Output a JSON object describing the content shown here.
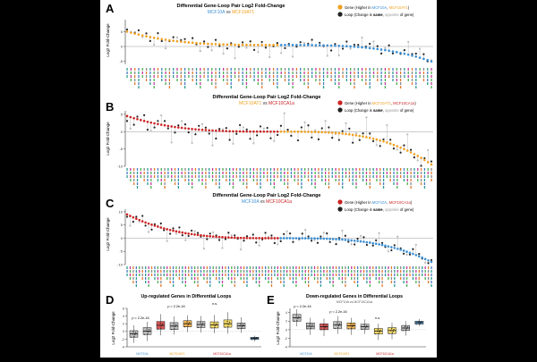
{
  "figure": {
    "panels": [
      {
        "letter": "A",
        "title": "Differential Gene-Loop Pair Log2 Fold-Change",
        "subtitle_a": "MCF10A",
        "subtitle_vs": " vs ",
        "subtitle_b": "MCF10AT1",
        "ylabel": "Log2 Fold-Change",
        "legend_gene_prefix": "Gene (Higher in ",
        "legend_gene_a": "MCF10A",
        "legend_gene_sep": ", ",
        "legend_gene_b": "MCF10AT1",
        "legend_gene_suffix": ")",
        "legend_loop_prefix": "Loop (Change is ",
        "legend_loop_same": "same",
        "legend_loop_mid": ", ",
        "legend_loop_opp": "opposite",
        "legend_loop_suffix": " of gene)"
      },
      {
        "letter": "B",
        "title": "Differential Gene-Loop Pair Log2 Fold-Change",
        "subtitle_a": "MCF10AT1",
        "subtitle_vs": " vs ",
        "subtitle_b": "MCF10CA1a",
        "ylabel": "Log2 Fold-Change",
        "legend_gene_prefix": "Gene (Higher in ",
        "legend_gene_a": "MCF10AT1",
        "legend_gene_sep": ", ",
        "legend_gene_b": "MCF10CA1a",
        "legend_gene_suffix": ")",
        "legend_loop_prefix": "Loop (Change is ",
        "legend_loop_same": "same",
        "legend_loop_mid": ", ",
        "legend_loop_opp": "opposite",
        "legend_loop_suffix": " of gene)"
      },
      {
        "letter": "C",
        "title": "Differential Gene-Loop Pair Log2 Fold-Change",
        "subtitle_a": "MCF10A",
        "subtitle_vs": " vs ",
        "subtitle_b": "MCF10CA1a",
        "ylabel": "Log2 Fold-Change",
        "legend_gene_prefix": "Gene (Higher in ",
        "legend_gene_a": "MCF10A",
        "legend_gene_sep": ", ",
        "legend_gene_b": "MCF10CA1a",
        "legend_gene_suffix": ")",
        "legend_loop_prefix": "Loop (Change is ",
        "legend_loop_same": "same",
        "legend_loop_mid": ", ",
        "legend_loop_opp": "opposite",
        "legend_loop_suffix": " of gene)"
      }
    ],
    "box_panels": [
      {
        "letter": "D",
        "title": "Up-regulated Genes in Differential Loops",
        "ylabel": "Log2 Fold-Change",
        "subtitle": "",
        "pvals": [
          "p < 2.2e-16",
          "p < 2.2e-16",
          "n.s."
        ],
        "groups": [
          "MCF10A",
          "MCF10AT1",
          "MCF10CA1a"
        ]
      },
      {
        "letter": "E",
        "title": "Down-regulated Genes in Differential Loops",
        "ylabel": "Log2 Fold-Change",
        "subtitle": "MCF10A vs MCF10CA1a",
        "pvals": [
          "p < 2.2e-16",
          "p < 2.2e-16",
          "n.s."
        ],
        "groups": [
          "MCF10A",
          "MCF10AT1",
          "MCF10CA1a"
        ]
      }
    ]
  },
  "colors": {
    "mcf10a": "#3b8fd4",
    "mcf10at1": "#f0a020",
    "mcf10ca1a": "#cc2222",
    "loop_same": "#222222",
    "loop_opp": "#bbbbbb",
    "box_grey": "#aaaaaa",
    "box_yellow": "#f5d33a",
    "box_blue": "#3b8fd4",
    "label_teal": "#2a9d8f",
    "label_magenta": "#c0399b",
    "label_orange": "#e07b2a",
    "label_blue": "#4a7ac9",
    "label_green": "#4caf50"
  },
  "chart_data": [
    {
      "type": "scatter",
      "panel": "A",
      "series_high": "mcf10at1",
      "series_low": "mcf10a",
      "n_genes": 80,
      "start": 5.0,
      "end": -5.0,
      "mid": 0.5,
      "ylim": [
        -6,
        9
      ],
      "yticks": [
        -5,
        0,
        5
      ],
      "loop_offsets": [
        1.2,
        -1.8,
        0.6,
        2.4,
        -0.9,
        1.6,
        -2.2,
        0.8,
        3.0,
        -1.1,
        1.4,
        -0.5,
        2.0,
        -2.8,
        0.9,
        1.7,
        -1.5,
        2.6,
        -0.7,
        1.1
      ]
    },
    {
      "type": "scatter",
      "panel": "B",
      "series_high": "mcf10ca1a",
      "series_low": "mcf10at1",
      "n_genes": 90,
      "start": 4.5,
      "end": -9.5,
      "mid": 0.0,
      "ylim": [
        -10,
        6
      ],
      "yticks": [
        -10,
        -5,
        0,
        5
      ],
      "loop_offsets": [
        -2.4,
        1.8,
        -3.2,
        1.2,
        -1.6,
        2.8,
        -3.8,
        0.9,
        -2.0,
        1.5,
        -4.2,
        2.1,
        -1.2,
        3.1,
        -2.7,
        1.0,
        -3.5,
        1.9,
        -1.8,
        2.5
      ]
    },
    {
      "type": "scatter",
      "panel": "C",
      "series_high": "mcf10ca1a",
      "series_low": "mcf10a",
      "n_genes": 100,
      "start": 9.0,
      "end": -9.0,
      "mid": 0.0,
      "ylim": [
        -10,
        11
      ],
      "yticks": [
        -10,
        -5,
        0,
        5,
        10
      ],
      "loop_offsets": [
        -1.5,
        2.2,
        -2.8,
        1.3,
        -0.8,
        3.4,
        -2.0,
        1.7,
        -3.1,
        0.9,
        -1.9,
        2.6,
        -1.1,
        3.0,
        -2.4,
        1.5,
        -0.6,
        2.9,
        -1.7,
        1.2
      ]
    },
    {
      "type": "box",
      "panel": "D",
      "ylim": [
        -4,
        6
      ],
      "yticks": [
        -4,
        -2,
        0,
        2,
        4,
        6
      ],
      "boxes": [
        {
          "color": "box_grey",
          "q1": -1.5,
          "med": -0.6,
          "q3": 0.2,
          "lo": -3.0,
          "hi": 1.6
        },
        {
          "color": "box_grey",
          "q1": -0.8,
          "med": 0.1,
          "q3": 1.0,
          "lo": -2.5,
          "hi": 2.5
        },
        {
          "color": "mcf10ca1a",
          "q1": 0.6,
          "med": 1.6,
          "q3": 2.6,
          "lo": -1.0,
          "hi": 4.5
        },
        {
          "color": "box_grey",
          "q1": 0.5,
          "med": 1.4,
          "q3": 2.3,
          "lo": -0.8,
          "hi": 3.9
        },
        {
          "color": "mcf10at1",
          "q1": 1.2,
          "med": 2.0,
          "q3": 2.8,
          "lo": -0.2,
          "hi": 4.2
        },
        {
          "color": "box_grey",
          "q1": 1.0,
          "med": 1.8,
          "q3": 2.6,
          "lo": -0.3,
          "hi": 4.0
        },
        {
          "color": "box_yellow",
          "q1": 0.9,
          "med": 1.7,
          "q3": 2.5,
          "lo": -0.5,
          "hi": 4.3
        },
        {
          "color": "box_yellow",
          "q1": 1.1,
          "med": 2.0,
          "q3": 3.0,
          "lo": -0.6,
          "hi": 5.0
        },
        {
          "color": "box_grey",
          "q1": 0.7,
          "med": 1.5,
          "q3": 2.2,
          "lo": -0.4,
          "hi": 3.7
        },
        {
          "color": "box_blue",
          "q1": -2.1,
          "med": -1.8,
          "q3": -1.5,
          "lo": -2.6,
          "hi": -1.1
        }
      ]
    },
    {
      "type": "box",
      "panel": "E",
      "ylim": [
        -4,
        5
      ],
      "yticks": [
        -4,
        -2,
        0,
        2,
        4
      ],
      "boxes": [
        {
          "color": "box_grey",
          "q1": 2.0,
          "med": 2.8,
          "q3": 3.6,
          "lo": 0.8,
          "hi": 4.8
        },
        {
          "color": "box_grey",
          "q1": 0.2,
          "med": 0.8,
          "q3": 1.6,
          "lo": -1.2,
          "hi": 2.8
        },
        {
          "color": "mcf10ca1a",
          "q1": 0.0,
          "med": 0.7,
          "q3": 1.4,
          "lo": -1.5,
          "hi": 2.6
        },
        {
          "color": "box_grey",
          "q1": 0.3,
          "med": 1.1,
          "q3": 1.9,
          "lo": -1.0,
          "hi": 3.2
        },
        {
          "color": "mcf10at1",
          "q1": 0.2,
          "med": 0.9,
          "q3": 1.6,
          "lo": -1.2,
          "hi": 2.8
        },
        {
          "color": "box_grey",
          "q1": 0.1,
          "med": 0.7,
          "q3": 1.3,
          "lo": -1.0,
          "hi": 2.4
        },
        {
          "color": "box_yellow",
          "q1": -1.0,
          "med": -0.3,
          "q3": 0.3,
          "lo": -2.4,
          "hi": 1.4
        },
        {
          "color": "box_yellow",
          "q1": -0.9,
          "med": -0.2,
          "q3": 0.5,
          "lo": -2.2,
          "hi": 1.6
        },
        {
          "color": "box_grey",
          "q1": -0.2,
          "med": 0.4,
          "q3": 1.0,
          "lo": -1.4,
          "hi": 2.0
        },
        {
          "color": "box_blue",
          "q1": 1.3,
          "med": 1.7,
          "q3": 2.0,
          "lo": 0.9,
          "hi": 2.5
        }
      ]
    }
  ]
}
